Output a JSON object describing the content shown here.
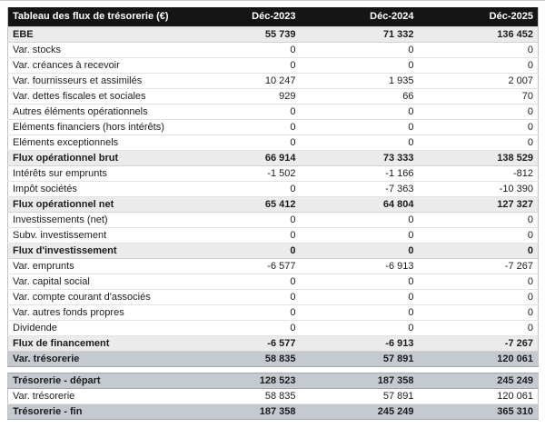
{
  "colors": {
    "header_bg": "#151515",
    "header_text": "#ffffff",
    "subtotal_row_bg": "#ebebeb",
    "highlight_row_bg": "#c5cad1",
    "normal_row_bg": "#ffffff",
    "text": "#1c1c1c",
    "border": "#c2c2c2"
  },
  "table": {
    "title": "Tableau des flux de trésorerie (€)",
    "columns": [
      "Déc-2023",
      "Déc-2024",
      "Déc-2025"
    ],
    "rows": [
      {
        "label": "EBE",
        "values": [
          "55 739",
          "71 332",
          "136 452"
        ],
        "style": "subtotal"
      },
      {
        "label": "Var. stocks",
        "values": [
          "0",
          "0",
          "0"
        ],
        "style": "normal"
      },
      {
        "label": "Var. créances à recevoir",
        "values": [
          "0",
          "0",
          "0"
        ],
        "style": "normal"
      },
      {
        "label": "Var. fournisseurs et assimilés",
        "values": [
          "10 247",
          "1 935",
          "2 007"
        ],
        "style": "normal"
      },
      {
        "label": "Var. dettes fiscales et sociales",
        "values": [
          "929",
          "66",
          "70"
        ],
        "style": "normal"
      },
      {
        "label": "Autres éléments opérationnels",
        "values": [
          "0",
          "0",
          "0"
        ],
        "style": "normal"
      },
      {
        "label": "Eléments financiers (hors intérêts)",
        "values": [
          "0",
          "0",
          "0"
        ],
        "style": "normal"
      },
      {
        "label": "Eléments exceptionnels",
        "values": [
          "0",
          "0",
          "0"
        ],
        "style": "normal"
      },
      {
        "label": "Flux opérationnel brut",
        "values": [
          "66 914",
          "73 333",
          "138 529"
        ],
        "style": "subtotal"
      },
      {
        "label": "Intérêts sur emprunts",
        "values": [
          "-1 502",
          "-1 166",
          "-812"
        ],
        "style": "normal"
      },
      {
        "label": "Impôt sociétés",
        "values": [
          "0",
          "-7 363",
          "-10 390"
        ],
        "style": "normal"
      },
      {
        "label": "Flux opérationnel net",
        "values": [
          "65 412",
          "64 804",
          "127 327"
        ],
        "style": "subtotal"
      },
      {
        "label": "Investissements (net)",
        "values": [
          "0",
          "0",
          "0"
        ],
        "style": "normal"
      },
      {
        "label": "Subv. investissement",
        "values": [
          "0",
          "0",
          "0"
        ],
        "style": "normal"
      },
      {
        "label": "Flux d'investissement",
        "values": [
          "0",
          "0",
          "0"
        ],
        "style": "subtotal"
      },
      {
        "label": "Var. emprunts",
        "values": [
          "-6 577",
          "-6 913",
          "-7 267"
        ],
        "style": "normal"
      },
      {
        "label": "Var. capital social",
        "values": [
          "0",
          "0",
          "0"
        ],
        "style": "normal"
      },
      {
        "label": "Var. compte courant d'associés",
        "values": [
          "0",
          "0",
          "0"
        ],
        "style": "normal"
      },
      {
        "label": "Var. autres fonds propres",
        "values": [
          "0",
          "0",
          "0"
        ],
        "style": "normal"
      },
      {
        "label": "Dividende",
        "values": [
          "0",
          "0",
          "0"
        ],
        "style": "normal"
      },
      {
        "label": "Flux de financement",
        "values": [
          "-6 577",
          "-6 913",
          "-7 267"
        ],
        "style": "subtotal"
      },
      {
        "label": "Var. trésorerie",
        "values": [
          "58 835",
          "57 891",
          "120 061"
        ],
        "style": "highlight"
      }
    ],
    "summary_rows": [
      {
        "label": "Trésorerie - départ",
        "values": [
          "128 523",
          "187 358",
          "245 249"
        ],
        "style": "highlight"
      },
      {
        "label": "Var. trésorerie",
        "values": [
          "58 835",
          "57 891",
          "120 061"
        ],
        "style": "normal"
      },
      {
        "label": "Trésorerie - fin",
        "values": [
          "187 358",
          "245 249",
          "365 310"
        ],
        "style": "highlight"
      }
    ]
  },
  "chart_data": {
    "type": "table",
    "title": "Tableau des flux de trésorerie (€)",
    "columns": [
      "Déc-2023",
      "Déc-2024",
      "Déc-2025"
    ],
    "rows": [
      {
        "label": "EBE",
        "values": [
          55739,
          71332,
          136452
        ]
      },
      {
        "label": "Var. stocks",
        "values": [
          0,
          0,
          0
        ]
      },
      {
        "label": "Var. créances à recevoir",
        "values": [
          0,
          0,
          0
        ]
      },
      {
        "label": "Var. fournisseurs et assimilés",
        "values": [
          10247,
          1935,
          2007
        ]
      },
      {
        "label": "Var. dettes fiscales et sociales",
        "values": [
          929,
          66,
          70
        ]
      },
      {
        "label": "Autres éléments opérationnels",
        "values": [
          0,
          0,
          0
        ]
      },
      {
        "label": "Eléments financiers (hors intérêts)",
        "values": [
          0,
          0,
          0
        ]
      },
      {
        "label": "Eléments exceptionnels",
        "values": [
          0,
          0,
          0
        ]
      },
      {
        "label": "Flux opérationnel brut",
        "values": [
          66914,
          73333,
          138529
        ]
      },
      {
        "label": "Intérêts sur emprunts",
        "values": [
          -1502,
          -1166,
          -812
        ]
      },
      {
        "label": "Impôt sociétés",
        "values": [
          0,
          -7363,
          -10390
        ]
      },
      {
        "label": "Flux opérationnel net",
        "values": [
          65412,
          64804,
          127327
        ]
      },
      {
        "label": "Investissements (net)",
        "values": [
          0,
          0,
          0
        ]
      },
      {
        "label": "Subv. investissement",
        "values": [
          0,
          0,
          0
        ]
      },
      {
        "label": "Flux d'investissement",
        "values": [
          0,
          0,
          0
        ]
      },
      {
        "label": "Var. emprunts",
        "values": [
          -6577,
          -6913,
          -7267
        ]
      },
      {
        "label": "Var. capital social",
        "values": [
          0,
          0,
          0
        ]
      },
      {
        "label": "Var. compte courant d'associés",
        "values": [
          0,
          0,
          0
        ]
      },
      {
        "label": "Var. autres fonds propres",
        "values": [
          0,
          0,
          0
        ]
      },
      {
        "label": "Dividende",
        "values": [
          0,
          0,
          0
        ]
      },
      {
        "label": "Flux de financement",
        "values": [
          -6577,
          -6913,
          -7267
        ]
      },
      {
        "label": "Var. trésorerie",
        "values": [
          58835,
          57891,
          120061
        ]
      },
      {
        "label": "Trésorerie - départ",
        "values": [
          128523,
          187358,
          245249
        ]
      },
      {
        "label": "Var. trésorerie",
        "values": [
          58835,
          57891,
          120061
        ]
      },
      {
        "label": "Trésorerie - fin",
        "values": [
          187358,
          245249,
          365310
        ]
      }
    ]
  }
}
